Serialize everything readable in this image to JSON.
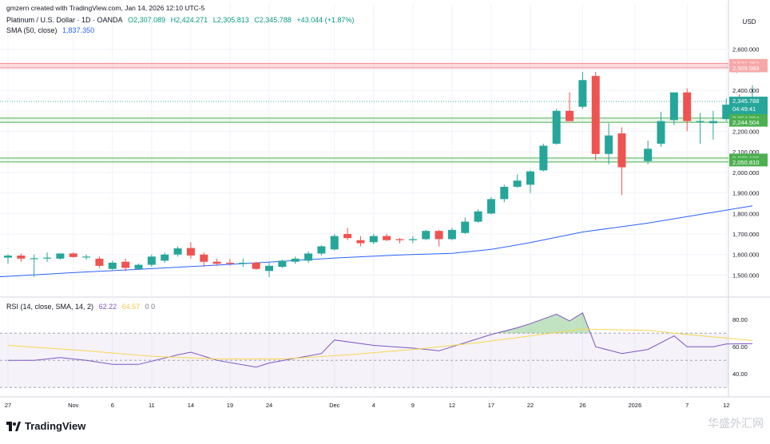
{
  "attribution": "gmzern created with TradingView.com, Jan 14, 2026 12:10 UTC-5",
  "legend": {
    "symbol": "Platinum / U.S. Dollar · 1D · OANDA",
    "open": "O2,307.089",
    "high": "H2,424.271",
    "low": "L2,305.813",
    "close": "C2,345.788",
    "change": "+43.044 (+1.87%)",
    "sma_label": "SMA (50, close)",
    "sma_value": "1,837.350",
    "rsi_label": "RSI (14, close, SMA, 14, 2)",
    "rsi_value": "62.22",
    "rsi_sma_value": "64.57",
    "rsi_extra": "0  0"
  },
  "brand": "TradingView",
  "watermark": "华盛外汇网",
  "colors": {
    "up": "#26a69a",
    "down": "#ef5350",
    "sma": "#2962ff",
    "rsi": "#7e57c2",
    "rsi_sma": "#f7d74f",
    "resistance_zone": "#f7a7a7",
    "support_zone": "#4caf50"
  },
  "chart_data": [
    {
      "type": "candlestick",
      "title": "Platinum / U.S. Dollar · 1D · OANDA",
      "currency": "USD",
      "ylim": [
        1420,
        2665
      ],
      "y_ticks": [
        "2,600.000",
        "2,500.000",
        "2,400.000",
        "2,300.000",
        "2,200.000",
        "2,100.000",
        "2,000.000",
        "1,900.000",
        "1,800.000",
        "1,700.000",
        "1,600.000",
        "1,500.000"
      ],
      "y_tick_values": [
        2600,
        2500,
        2400,
        2300,
        2200,
        2100,
        2000,
        1900,
        1800,
        1700,
        1600,
        1500
      ],
      "x_labels": [
        {
          "label": "27",
          "date": "2025-10-27"
        },
        {
          "label": "Nov",
          "date": "2025-11-03"
        },
        {
          "label": "6",
          "date": "2025-11-06"
        },
        {
          "label": "11",
          "date": "2025-11-11"
        },
        {
          "label": "14",
          "date": "2025-11-14"
        },
        {
          "label": "19",
          "date": "2025-11-19"
        },
        {
          "label": "24",
          "date": "2025-11-24"
        },
        {
          "label": "Dec",
          "date": "2025-12-01"
        },
        {
          "label": "4",
          "date": "2025-12-04"
        },
        {
          "label": "9",
          "date": "2025-12-09"
        },
        {
          "label": "12",
          "date": "2025-12-12"
        },
        {
          "label": "17",
          "date": "2025-12-17"
        },
        {
          "label": "22",
          "date": "2025-12-22"
        },
        {
          "label": "26",
          "date": "2025-12-26"
        },
        {
          "label": "2026",
          "date": "2026-01-01"
        },
        {
          "label": "7",
          "date": "2026-01-07"
        },
        {
          "label": "12",
          "date": "2026-01-12"
        }
      ],
      "candles": [
        {
          "date": "2025-10-27",
          "o": 1585,
          "h": 1600,
          "l": 1555,
          "c": 1595
        },
        {
          "date": "2025-10-28",
          "o": 1595,
          "h": 1605,
          "l": 1565,
          "c": 1580
        },
        {
          "date": "2025-10-29",
          "o": 1580,
          "h": 1600,
          "l": 1490,
          "c": 1582
        },
        {
          "date": "2025-10-30",
          "o": 1582,
          "h": 1610,
          "l": 1565,
          "c": 1585
        },
        {
          "date": "2025-10-31",
          "o": 1580,
          "h": 1605,
          "l": 1575,
          "c": 1605
        },
        {
          "date": "2025-11-03",
          "o": 1605,
          "h": 1610,
          "l": 1585,
          "c": 1588
        },
        {
          "date": "2025-11-04",
          "o": 1588,
          "h": 1600,
          "l": 1575,
          "c": 1590
        },
        {
          "date": "2025-11-05",
          "o": 1580,
          "h": 1590,
          "l": 1535,
          "c": 1545
        },
        {
          "date": "2025-11-06",
          "o": 1530,
          "h": 1570,
          "l": 1525,
          "c": 1560
        },
        {
          "date": "2025-11-07",
          "o": 1565,
          "h": 1580,
          "l": 1520,
          "c": 1535
        },
        {
          "date": "2025-11-10",
          "o": 1530,
          "h": 1555,
          "l": 1525,
          "c": 1550
        },
        {
          "date": "2025-11-11",
          "o": 1550,
          "h": 1600,
          "l": 1540,
          "c": 1590
        },
        {
          "date": "2025-11-12",
          "o": 1570,
          "h": 1610,
          "l": 1560,
          "c": 1600
        },
        {
          "date": "2025-11-13",
          "o": 1600,
          "h": 1640,
          "l": 1590,
          "c": 1630
        },
        {
          "date": "2025-11-14",
          "o": 1632,
          "h": 1660,
          "l": 1580,
          "c": 1595
        },
        {
          "date": "2025-11-17",
          "o": 1600,
          "h": 1610,
          "l": 1540,
          "c": 1565
        },
        {
          "date": "2025-11-18",
          "o": 1565,
          "h": 1580,
          "l": 1545,
          "c": 1555
        },
        {
          "date": "2025-11-19",
          "o": 1560,
          "h": 1580,
          "l": 1545,
          "c": 1555
        },
        {
          "date": "2025-11-20",
          "o": 1555,
          "h": 1580,
          "l": 1540,
          "c": 1560
        },
        {
          "date": "2025-11-21",
          "o": 1560,
          "h": 1565,
          "l": 1525,
          "c": 1530
        },
        {
          "date": "2025-11-24",
          "o": 1520,
          "h": 1560,
          "l": 1490,
          "c": 1545
        },
        {
          "date": "2025-11-25",
          "o": 1540,
          "h": 1575,
          "l": 1535,
          "c": 1570
        },
        {
          "date": "2025-11-26",
          "o": 1565,
          "h": 1590,
          "l": 1555,
          "c": 1580
        },
        {
          "date": "2025-11-27",
          "o": 1570,
          "h": 1615,
          "l": 1560,
          "c": 1605
        },
        {
          "date": "2025-11-28",
          "o": 1605,
          "h": 1645,
          "l": 1595,
          "c": 1640
        },
        {
          "date": "2025-12-01",
          "o": 1625,
          "h": 1700,
          "l": 1620,
          "c": 1690
        },
        {
          "date": "2025-12-02",
          "o": 1700,
          "h": 1730,
          "l": 1670,
          "c": 1680
        },
        {
          "date": "2025-12-03",
          "o": 1670,
          "h": 1690,
          "l": 1640,
          "c": 1655
        },
        {
          "date": "2025-12-04",
          "o": 1660,
          "h": 1700,
          "l": 1650,
          "c": 1690
        },
        {
          "date": "2025-12-05",
          "o": 1690,
          "h": 1700,
          "l": 1665,
          "c": 1670
        },
        {
          "date": "2025-12-08",
          "o": 1675,
          "h": 1680,
          "l": 1655,
          "c": 1670
        },
        {
          "date": "2025-12-09",
          "o": 1670,
          "h": 1690,
          "l": 1655,
          "c": 1675
        },
        {
          "date": "2025-12-10",
          "o": 1675,
          "h": 1720,
          "l": 1670,
          "c": 1715
        },
        {
          "date": "2025-12-11",
          "o": 1715,
          "h": 1720,
          "l": 1640,
          "c": 1675
        },
        {
          "date": "2025-12-12",
          "o": 1675,
          "h": 1730,
          "l": 1670,
          "c": 1720
        },
        {
          "date": "2025-12-15",
          "o": 1705,
          "h": 1780,
          "l": 1700,
          "c": 1760
        },
        {
          "date": "2025-12-16",
          "o": 1760,
          "h": 1820,
          "l": 1755,
          "c": 1810
        },
        {
          "date": "2025-12-17",
          "o": 1800,
          "h": 1880,
          "l": 1795,
          "c": 1870
        },
        {
          "date": "2025-12-18",
          "o": 1870,
          "h": 1940,
          "l": 1855,
          "c": 1930
        },
        {
          "date": "2025-12-19",
          "o": 1930,
          "h": 1990,
          "l": 1925,
          "c": 1960
        },
        {
          "date": "2025-12-22",
          "o": 1940,
          "h": 2010,
          "l": 1900,
          "c": 2005
        },
        {
          "date": "2025-12-23",
          "o": 2010,
          "h": 2140,
          "l": 2005,
          "c": 2130
        },
        {
          "date": "2025-12-24",
          "o": 2140,
          "h": 2310,
          "l": 2135,
          "c": 2300
        },
        {
          "date": "2025-12-25",
          "o": 2300,
          "h": 2390,
          "l": 2260,
          "c": 2250
        },
        {
          "date": "2025-12-26",
          "o": 2320,
          "h": 2490,
          "l": 2310,
          "c": 2450
        },
        {
          "date": "2025-12-29",
          "o": 2470,
          "h": 2490,
          "l": 2060,
          "c": 2090
        },
        {
          "date": "2025-12-30",
          "o": 2090,
          "h": 2240,
          "l": 2040,
          "c": 2180
        },
        {
          "date": "2025-12-31",
          "o": 2190,
          "h": 2220,
          "l": 1890,
          "c": 2025
        },
        {
          "date": "2026-01-02",
          "o": 2055,
          "h": 2155,
          "l": 2040,
          "c": 2115
        },
        {
          "date": "2026-01-05",
          "o": 2140,
          "h": 2295,
          "l": 2125,
          "c": 2250
        },
        {
          "date": "2026-01-06",
          "o": 2255,
          "h": 2390,
          "l": 2230,
          "c": 2390
        },
        {
          "date": "2026-01-07",
          "o": 2390,
          "h": 2410,
          "l": 2200,
          "c": 2250
        },
        {
          "date": "2026-01-08",
          "o": 2245,
          "h": 2290,
          "l": 2140,
          "c": 2250
        },
        {
          "date": "2026-01-09",
          "o": 2240,
          "h": 2300,
          "l": 2160,
          "c": 2250
        },
        {
          "date": "2026-01-12",
          "o": 2260,
          "h": 2360,
          "l": 2250,
          "c": 2330
        },
        {
          "date": "2026-01-13",
          "o": 2330,
          "h": 2380,
          "l": 2250,
          "c": 2300
        },
        {
          "date": "2026-01-14",
          "o": 2307.089,
          "h": 2424.271,
          "l": 2305.813,
          "c": 2345.788
        }
      ],
      "sma": [
        {
          "date": "2025-10-24",
          "v": 1490
        },
        {
          "date": "2025-11-03",
          "v": 1512
        },
        {
          "date": "2025-11-10",
          "v": 1528
        },
        {
          "date": "2025-11-17",
          "v": 1545
        },
        {
          "date": "2025-11-24",
          "v": 1563
        },
        {
          "date": "2025-12-01",
          "v": 1583
        },
        {
          "date": "2025-12-08",
          "v": 1598
        },
        {
          "date": "2025-12-12",
          "v": 1606
        },
        {
          "date": "2025-12-17",
          "v": 1625
        },
        {
          "date": "2025-12-22",
          "v": 1658
        },
        {
          "date": "2025-12-26",
          "v": 1710
        },
        {
          "date": "2026-01-02",
          "v": 1753
        },
        {
          "date": "2026-01-07",
          "v": 1785
        },
        {
          "date": "2026-01-14",
          "v": 1837.35
        }
      ],
      "zones": [
        {
          "kind": "resistance",
          "from": 2509.569,
          "to": 2531.353,
          "labels": [
            "2,531.353",
            "2,509.569"
          ]
        },
        {
          "kind": "support",
          "from": 2244.504,
          "to": 2264.894,
          "labels": [
            "2,264.894",
            "2,244.504"
          ]
        },
        {
          "kind": "support",
          "from": 2050.81,
          "to": 2070.105,
          "labels": [
            "2,070.105",
            "2,050.810"
          ]
        }
      ],
      "last_price": {
        "value": 2345.788,
        "label": "2,345.788",
        "countdown": "04:49:41"
      }
    },
    {
      "type": "line",
      "title": "RSI (14, close, SMA, 14, 2)",
      "ylim": [
        26,
        86
      ],
      "y_ticks": [
        "80.00",
        "60.00",
        "40.00"
      ],
      "y_tick_values": [
        80,
        60,
        40
      ],
      "bands": [
        70,
        50,
        30
      ],
      "series": [
        {
          "name": "RSI",
          "values": [
            {
              "date": "2025-10-27",
              "v": 50
            },
            {
              "date": "2025-10-29",
              "v": 50
            },
            {
              "date": "2025-10-31",
              "v": 52
            },
            {
              "date": "2025-11-04",
              "v": 50
            },
            {
              "date": "2025-11-06",
              "v": 47
            },
            {
              "date": "2025-11-10",
              "v": 47
            },
            {
              "date": "2025-11-13",
              "v": 54
            },
            {
              "date": "2025-11-14",
              "v": 56
            },
            {
              "date": "2025-11-18",
              "v": 50
            },
            {
              "date": "2025-11-21",
              "v": 45
            },
            {
              "date": "2025-11-24",
              "v": 48
            },
            {
              "date": "2025-11-28",
              "v": 55
            },
            {
              "date": "2025-12-01",
              "v": 65
            },
            {
              "date": "2025-12-04",
              "v": 61
            },
            {
              "date": "2025-12-09",
              "v": 59
            },
            {
              "date": "2025-12-11",
              "v": 57
            },
            {
              "date": "2025-12-15",
              "v": 63
            },
            {
              "date": "2025-12-17",
              "v": 69
            },
            {
              "date": "2025-12-19",
              "v": 74
            },
            {
              "date": "2025-12-22",
              "v": 77
            },
            {
              "date": "2025-12-24",
              "v": 84
            },
            {
              "date": "2025-12-25",
              "v": 79
            },
            {
              "date": "2025-12-26",
              "v": 85
            },
            {
              "date": "2025-12-29",
              "v": 60
            },
            {
              "date": "2025-12-31",
              "v": 55
            },
            {
              "date": "2026-01-02",
              "v": 58
            },
            {
              "date": "2026-01-06",
              "v": 68
            },
            {
              "date": "2026-01-07",
              "v": 60
            },
            {
              "date": "2026-01-09",
              "v": 60
            },
            {
              "date": "2026-01-12",
              "v": 62
            },
            {
              "date": "2026-01-14",
              "v": 62.22
            }
          ]
        },
        {
          "name": "RSI-based MA",
          "values": [
            {
              "date": "2025-10-27",
              "v": 61
            },
            {
              "date": "2025-11-04",
              "v": 57
            },
            {
              "date": "2025-11-11",
              "v": 53
            },
            {
              "date": "2025-11-18",
              "v": 51
            },
            {
              "date": "2025-11-25",
              "v": 51
            },
            {
              "date": "2025-12-02",
              "v": 54
            },
            {
              "date": "2025-12-09",
              "v": 58
            },
            {
              "date": "2025-12-16",
              "v": 63
            },
            {
              "date": "2025-12-22",
              "v": 68
            },
            {
              "date": "2025-12-26",
              "v": 73
            },
            {
              "date": "2026-01-02",
              "v": 72
            },
            {
              "date": "2026-01-07",
              "v": 69
            },
            {
              "date": "2026-01-14",
              "v": 64.57
            }
          ]
        }
      ]
    }
  ]
}
